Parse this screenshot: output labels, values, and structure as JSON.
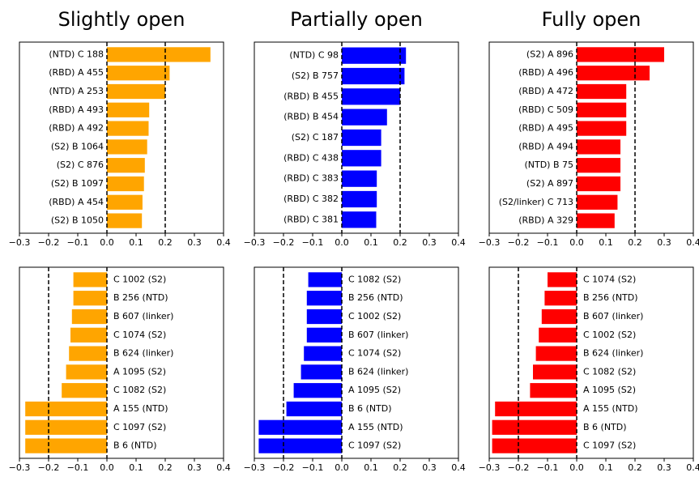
{
  "chart_data": [
    {
      "type": "barh",
      "title": "Slightly open",
      "color": "#ffa500",
      "categories": [
        "(NTD) C 188",
        "(RBD) A 455",
        "(NTD) A 253",
        "(RBD) A 493",
        "(RBD) A 492",
        "(S2) B 1064",
        "(S2) C 876",
        "(S2) B 1097",
        "(RBD) A 454",
        "(S2) B 1050"
      ],
      "values": [
        0.355,
        0.215,
        0.2,
        0.145,
        0.143,
        0.138,
        0.13,
        0.127,
        0.122,
        0.12
      ],
      "xlim": [
        -0.3,
        0.4
      ],
      "xticks": [
        {
          "value": -0.3,
          "label": "−0.3"
        },
        {
          "value": -0.2,
          "label": "−0.2"
        },
        {
          "value": -0.1,
          "label": "−0.1"
        },
        {
          "value": 0,
          "label": "0.0"
        },
        0.1,
        0.2,
        0.3,
        0.4
      ],
      "vlines": [
        0,
        0.2
      ]
    },
    {
      "type": "barh",
      "title": "Partially open",
      "color": "#0000ff",
      "categories": [
        "(NTD) C 98",
        "(S2) B 757",
        "(RBD) B 455",
        "(RBD) B 454",
        "(S2) C 187",
        "(RBD) C 438",
        "(RBD) C 383",
        "(RBD) C 382",
        "(RBD) C 381"
      ],
      "values": [
        0.22,
        0.215,
        0.2,
        0.155,
        0.135,
        0.135,
        0.12,
        0.12,
        0.118
      ],
      "xlim": [
        -0.3,
        0.4
      ],
      "xticks": [
        {
          "value": -0.3,
          "label": "−0.3"
        },
        {
          "value": -0.2,
          "label": "−0.2"
        },
        {
          "value": -0.1,
          "label": "−0.1"
        },
        {
          "value": 0,
          "label": "0.0"
        },
        0.1,
        0.2,
        0.3,
        0.4
      ],
      "vlines": [
        0,
        0.2
      ]
    },
    {
      "type": "barh",
      "title": "Fully open",
      "color": "#ff0000",
      "categories": [
        "(S2) A 896",
        "(RBD) A 496",
        "(RBD) A 472",
        "(RBD) C 509",
        "(RBD) A 495",
        "(RBD) A 494",
        "(NTD) B 75",
        "(S2) A 897",
        "(S2/linker) C 713",
        "(RBD) A 329"
      ],
      "values": [
        0.3,
        0.25,
        0.17,
        0.17,
        0.17,
        0.15,
        0.15,
        0.15,
        0.14,
        0.13
      ],
      "xlim": [
        -0.3,
        0.4
      ],
      "xticks": [
        {
          "value": -0.3,
          "label": "−0.3"
        },
        {
          "value": -0.2,
          "label": "−0.2"
        },
        {
          "value": -0.1,
          "label": "−0.1"
        },
        {
          "value": 0,
          "label": "0.0"
        },
        0.1,
        0.2,
        0.3,
        0.4
      ],
      "vlines": [
        0,
        0.2
      ]
    },
    {
      "type": "barh",
      "color": "#ffa500",
      "categories": [
        "C 1002 (S2)",
        "B 256 (NTD)",
        "B 607 (linker)",
        "C 1074 (S2)",
        "B 624 (linker)",
        "A 1095 (S2)",
        "C 1082 (S2)",
        "A 155 (NTD)",
        "C 1097 (S2)",
        "B 6 (NTD)"
      ],
      "values": [
        -0.115,
        -0.115,
        -0.12,
        -0.125,
        -0.13,
        -0.14,
        -0.155,
        -0.28,
        -0.28,
        -0.28
      ],
      "xlim": [
        -0.3,
        0.4
      ],
      "xticks": [
        {
          "value": -0.3,
          "label": "−0.3"
        },
        {
          "value": -0.2,
          "label": "−0.2"
        },
        {
          "value": -0.1,
          "label": "−0.1"
        },
        {
          "value": 0,
          "label": "0.0"
        },
        0.1,
        0.2,
        0.3,
        0.4
      ],
      "vlines": [
        -0.2,
        0
      ]
    },
    {
      "type": "barh",
      "color": "#0000ff",
      "categories": [
        "C 1082 (S2)",
        "B 256 (NTD)",
        "C 1002 (S2)",
        "B 607 (linker)",
        "C 1074 (S2)",
        "B 624 (linker)",
        "A 1095 (S2)",
        "B 6 (NTD)",
        "A 155 (NTD)",
        "C 1097 (S2)"
      ],
      "values": [
        -0.115,
        -0.12,
        -0.12,
        -0.12,
        -0.13,
        -0.14,
        -0.165,
        -0.19,
        -0.285,
        -0.285
      ],
      "xlim": [
        -0.3,
        0.4
      ],
      "xticks": [
        {
          "value": -0.3,
          "label": "−0.3"
        },
        {
          "value": -0.2,
          "label": "−0.2"
        },
        {
          "value": -0.1,
          "label": "−0.1"
        },
        {
          "value": 0,
          "label": "0.0"
        },
        0.1,
        0.2,
        0.3,
        0.4
      ],
      "vlines": [
        -0.2,
        0
      ]
    },
    {
      "type": "barh",
      "color": "#ff0000",
      "categories": [
        "C 1074 (S2)",
        "B 256 (NTD)",
        "B 607 (linker)",
        "C 1002 (S2)",
        "B 624  (linker)",
        "C 1082 (S2)",
        "A 1095 (S2)",
        "A 155 (NTD)",
        "B 6 (NTD)",
        "C 1097 (S2)"
      ],
      "values": [
        -0.1,
        -0.11,
        -0.12,
        -0.13,
        -0.14,
        -0.15,
        -0.16,
        -0.28,
        -0.29,
        -0.29
      ],
      "xlim": [
        -0.3,
        0.4
      ],
      "xticks": [
        {
          "value": -0.3,
          "label": "−0.3"
        },
        {
          "value": -0.2,
          "label": "−0.2"
        },
        {
          "value": -0.1,
          "label": "−0.1"
        },
        {
          "value": 0,
          "label": "0.0"
        },
        0.1,
        0.2,
        0.3,
        0.4
      ],
      "vlines": [
        -0.2,
        0
      ]
    }
  ]
}
